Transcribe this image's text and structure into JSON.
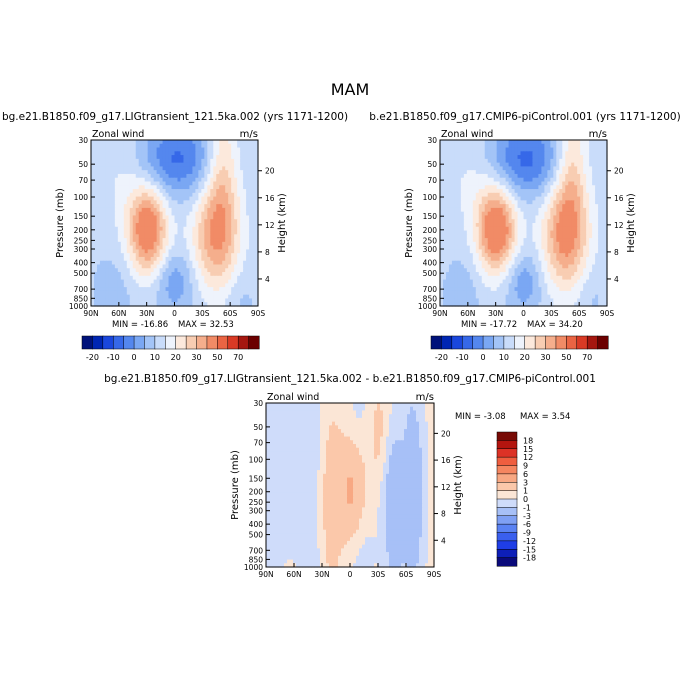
{
  "figure_title": "MAM",
  "colors": {
    "panel_scale": [
      "#00127a",
      "#0026b3",
      "#1a47dd",
      "#3668e8",
      "#5487ee",
      "#7aa7f3",
      "#a3c4f7",
      "#c9dcfa",
      "#eef3fc",
      "#fce9dc",
      "#f8cdb2",
      "#f5ae8c",
      "#f18b66",
      "#ea6443",
      "#d93a25",
      "#a51710",
      "#6b0000"
    ],
    "diff_scale": [
      "#0a0a7a",
      "#0d1fb8",
      "#1f3ee6",
      "#3a5fee",
      "#5a82f3",
      "#7fa0f4",
      "#a7c0f7",
      "#cfdcfa",
      "#fbe6d6",
      "#fbc8aa",
      "#f8a883",
      "#f58660",
      "#ef5e3f",
      "#dc3226",
      "#b3150f",
      "#780a05"
    ]
  },
  "chart_data": [
    {
      "type": "heatmap",
      "title": "bg.e21.B1850.f09_g17.LIGtransient_121.5ka.002 (yrs 1171-1200)",
      "left_label": "Zonal wind",
      "units": "m/s",
      "ylabel": "Pressure (mb)",
      "right_label": "Height (km)",
      "x_ticks": [
        "90N",
        "60N",
        "30N",
        "0",
        "30S",
        "60S",
        "90S"
      ],
      "y_ticks": [
        30,
        50,
        70,
        100,
        150,
        200,
        250,
        300,
        400,
        500,
        700,
        850,
        1000
      ],
      "height_ticks": [
        4,
        8,
        12,
        16,
        20
      ],
      "min_label": "MIN = -16.86",
      "max_label": "MAX =  32.53",
      "colorbar_labels": [
        "-20",
        "-10",
        "0",
        "10",
        "20",
        "30",
        "50",
        "70"
      ]
    },
    {
      "type": "heatmap",
      "title": "b.e21.B1850.f09_g17.CMIP6-piControl.001 (yrs 1171-1200)",
      "left_label": "Zonal wind",
      "units": "m/s",
      "ylabel": "Pressure (mb)",
      "right_label": "Height (km)",
      "x_ticks": [
        "90N",
        "60N",
        "30N",
        "0",
        "30S",
        "60S",
        "90S"
      ],
      "y_ticks": [
        30,
        50,
        70,
        100,
        150,
        200,
        250,
        300,
        400,
        500,
        700,
        850,
        1000
      ],
      "height_ticks": [
        4,
        8,
        12,
        16,
        20
      ],
      "min_label": "MIN = -17.72",
      "max_label": "MAX =  34.20",
      "colorbar_labels": [
        "-20",
        "-10",
        "0",
        "10",
        "20",
        "30",
        "50",
        "70"
      ]
    },
    {
      "type": "heatmap",
      "title": "bg.e21.B1850.f09_g17.LIGtransient_121.5ka.002 - b.e21.B1850.f09_g17.CMIP6-piControl.001",
      "left_label": "Zonal wind",
      "units": "m/s",
      "ylabel": "Pressure (mb)",
      "right_label": "Height (km)",
      "x_ticks": [
        "90N",
        "60N",
        "30N",
        "0",
        "30S",
        "60S",
        "90S"
      ],
      "y_ticks": [
        30,
        50,
        70,
        100,
        150,
        200,
        250,
        300,
        400,
        500,
        700,
        850,
        1000
      ],
      "height_ticks": [
        4,
        8,
        12,
        16,
        20
      ],
      "min_label": "MIN =  -3.08",
      "max_label": "MAX =   3.54",
      "colorbar_labels": [
        "18",
        "15",
        "12",
        "9",
        "6",
        "3",
        "1",
        "0",
        "-1",
        "-3",
        "-6",
        "-9",
        "-12",
        "-15",
        "-18"
      ]
    }
  ]
}
